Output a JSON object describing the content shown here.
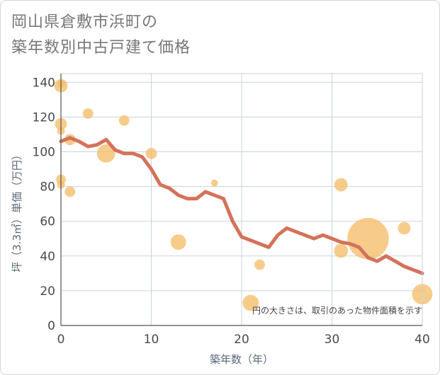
{
  "chart_data": {
    "type": "scatter",
    "title": "岡山県倉敷市浜町の築年数別中古戸建て価格",
    "title_lines": [
      "岡山県倉敷市浜町の",
      "築年数別中古戸建て価格"
    ],
    "xlabel": "築年数（年）",
    "ylabel": "坪（3.3㎡）単価（万円）",
    "xlim": [
      0,
      40
    ],
    "ylim": [
      0,
      145
    ],
    "x_ticks": [
      0,
      10,
      20,
      30,
      40
    ],
    "y_ticks": [
      0,
      20,
      40,
      60,
      80,
      100,
      120,
      140
    ],
    "grid": true,
    "note": "円の大きさは、取引のあった物件面積を示す",
    "colors": {
      "bubble": "#f5be6a",
      "line": "#d4725a",
      "grid": "#c8d2de",
      "axis": "#555555"
    },
    "bubbles": [
      {
        "x": 0,
        "y": 138,
        "size": 1.6
      },
      {
        "x": 0,
        "y": 139,
        "size": 0.8
      },
      {
        "x": 0,
        "y": 116,
        "size": 1.4
      },
      {
        "x": 0,
        "y": 112,
        "size": 0.8
      },
      {
        "x": 0,
        "y": 84,
        "size": 1.1
      },
      {
        "x": 0,
        "y": 81,
        "size": 0.8
      },
      {
        "x": 1,
        "y": 107,
        "size": 1.3
      },
      {
        "x": 1,
        "y": 77,
        "size": 1.2
      },
      {
        "x": 3,
        "y": 122,
        "size": 1.2
      },
      {
        "x": 5,
        "y": 99,
        "size": 2.3
      },
      {
        "x": 7,
        "y": 118,
        "size": 1.2
      },
      {
        "x": 10,
        "y": 99,
        "size": 1.3
      },
      {
        "x": 13,
        "y": 48,
        "size": 1.9
      },
      {
        "x": 17,
        "y": 82,
        "size": 0.7
      },
      {
        "x": 21,
        "y": 13,
        "size": 2.0
      },
      {
        "x": 22,
        "y": 35,
        "size": 1.2
      },
      {
        "x": 31,
        "y": 81,
        "size": 1.6
      },
      {
        "x": 31,
        "y": 43,
        "size": 1.7
      },
      {
        "x": 34,
        "y": 50,
        "size": 5.6
      },
      {
        "x": 38,
        "y": 56,
        "size": 1.5
      },
      {
        "x": 40,
        "y": 18,
        "size": 2.6
      }
    ],
    "series": [
      {
        "x": [
          0,
          1,
          2,
          3,
          4,
          5,
          6,
          7,
          8,
          9,
          10,
          11,
          12,
          13,
          14,
          15,
          16,
          17,
          18,
          19,
          20,
          21,
          22,
          23,
          24,
          25,
          26,
          27,
          28,
          29,
          30,
          31,
          32,
          33,
          34,
          35,
          36,
          37,
          38,
          39,
          40
        ],
        "y": [
          106,
          108,
          106,
          103,
          104,
          107,
          101,
          99,
          99,
          97,
          90,
          81,
          79,
          75,
          73,
          73,
          77,
          75,
          73,
          60,
          51,
          49,
          47,
          45,
          52,
          56,
          54,
          52,
          50,
          52,
          50,
          48,
          47,
          45,
          39,
          37,
          40,
          37,
          34,
          32,
          30
        ]
      }
    ]
  }
}
